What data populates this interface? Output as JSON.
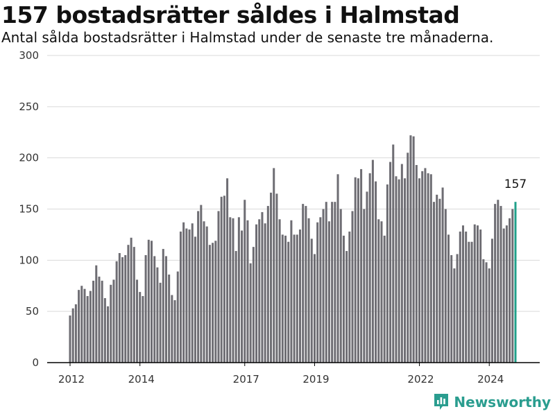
{
  "header": {
    "title": "157 bostadsrätter såldes i Halmstad",
    "subtitle": "Antal sålda bostadsrätter i Halmstad under de senaste tre månaderna."
  },
  "brand": {
    "name": "Newsworthy",
    "icon": "newsworthy-logo-icon"
  },
  "colors": {
    "bar": "#6e6d73",
    "highlight": "#20a08a",
    "grid": "#d9d9d9",
    "axis": "#000000",
    "brand": "#2a9d8f"
  },
  "chart_data": {
    "type": "bar",
    "title": "157 bostadsrätter såldes i Halmstad",
    "subtitle": "Antal sålda bostadsrätter i Halmstad under de senaste tre månaderna.",
    "xlabel": "",
    "ylabel": "",
    "ylim": [
      0,
      300
    ],
    "yticks": [
      0,
      50,
      100,
      150,
      200,
      250,
      300
    ],
    "x_tick_labels": [
      "2012",
      "2014",
      "2017",
      "2019",
      "2022",
      "2024"
    ],
    "grid": "horizontal",
    "legend": "none",
    "period": "monthly, rolling three months, 2012-01 to 2024-12",
    "values": [
      46,
      53,
      57,
      71,
      75,
      72,
      65,
      70,
      80,
      95,
      84,
      80,
      63,
      55,
      76,
      81,
      99,
      107,
      103,
      105,
      115,
      122,
      113,
      81,
      69,
      65,
      105,
      120,
      119,
      104,
      93,
      78,
      111,
      104,
      86,
      66,
      61,
      89,
      128,
      137,
      131,
      130,
      136,
      123,
      148,
      154,
      138,
      133,
      115,
      117,
      119,
      148,
      162,
      163,
      180,
      142,
      141,
      109,
      142,
      129,
      159,
      139,
      97,
      113,
      135,
      140,
      147,
      136,
      153,
      166,
      190,
      165,
      140,
      125,
      124,
      118,
      139,
      125,
      125,
      130,
      155,
      153,
      141,
      121,
      106,
      137,
      142,
      150,
      157,
      138,
      157,
      157,
      184,
      150,
      124,
      109,
      128,
      148,
      181,
      180,
      189,
      150,
      167,
      185,
      198,
      177,
      140,
      138,
      124,
      174,
      196,
      213,
      182,
      179,
      194,
      180,
      205,
      222,
      221,
      193,
      180,
      187,
      190,
      185,
      184,
      157,
      164,
      160,
      171,
      150,
      125,
      105,
      92,
      106,
      128,
      134,
      128,
      118,
      118,
      135,
      134,
      130,
      101,
      98,
      92,
      121,
      155,
      159,
      153,
      131,
      134,
      141,
      150,
      157
    ],
    "highlight_last": {
      "value": 157,
      "label": "157"
    }
  }
}
